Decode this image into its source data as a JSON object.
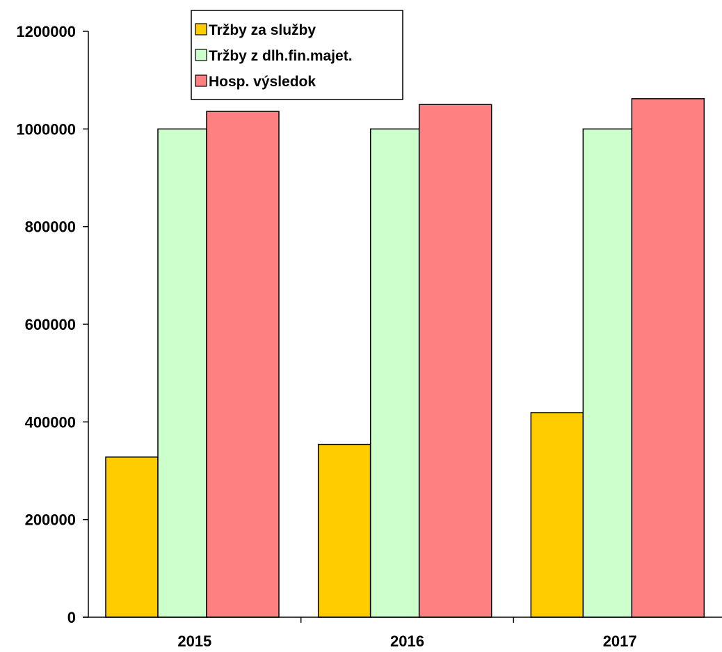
{
  "chart_data": {
    "type": "bar",
    "title": "",
    "xlabel": "",
    "ylabel": "",
    "categories": [
      "2015",
      "2016",
      "2017"
    ],
    "ylim": [
      0,
      1200000
    ],
    "yticks": [
      0,
      200000,
      400000,
      600000,
      800000,
      1000000,
      1200000
    ],
    "grid": false,
    "legend_position": "top-center",
    "series": [
      {
        "name": "Tržby za služby",
        "color": "#FFCC00",
        "values": [
          328000,
          354000,
          419000
        ]
      },
      {
        "name": "Tržby z dlh.fin.majet.",
        "color": "#CCFFCC",
        "values": [
          1000000,
          1000000,
          1000000
        ]
      },
      {
        "name": "Hosp. výsledok",
        "color": "#FF8080",
        "values": [
          1036000,
          1050000,
          1062000
        ]
      }
    ]
  }
}
